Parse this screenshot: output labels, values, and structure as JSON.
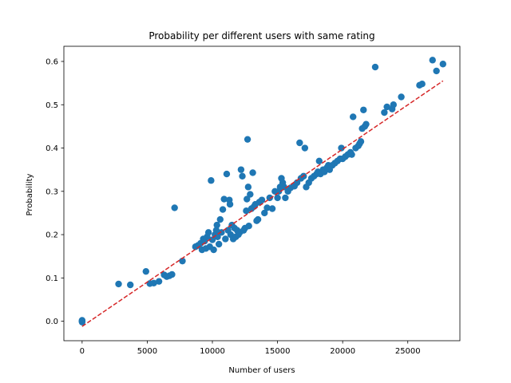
{
  "chart_data": {
    "type": "scatter",
    "title": "Probability per different users with same rating",
    "xlabel": "Number of users",
    "ylabel": "Probability",
    "xlim": [
      -1400,
      29000
    ],
    "ylim": [
      -0.045,
      0.635
    ],
    "xticks": [
      0,
      5000,
      10000,
      15000,
      20000,
      25000
    ],
    "yticks": [
      0.0,
      0.1,
      0.2,
      0.3,
      0.4,
      0.5,
      0.6
    ],
    "xtick_labels": [
      "0",
      "5000",
      "10000",
      "15000",
      "20000",
      "25000"
    ],
    "ytick_labels": [
      "0.0",
      "0.1",
      "0.2",
      "0.3",
      "0.4",
      "0.5",
      "0.6"
    ],
    "grid": false,
    "colors": {
      "points": "#1f77b4",
      "trend": "#d62728"
    },
    "trend_line": {
      "x": [
        0,
        27700
      ],
      "y": [
        -0.012,
        0.555
      ],
      "style": "dashed"
    },
    "points": [
      [
        0,
        0
      ],
      [
        0,
        0
      ],
      [
        0,
        0.002
      ],
      [
        0,
        -0.002
      ],
      [
        2800,
        0.086
      ],
      [
        3700,
        0.084
      ],
      [
        4900,
        0.115
      ],
      [
        5200,
        0.087
      ],
      [
        5500,
        0.088
      ],
      [
        5900,
        0.092
      ],
      [
        6300,
        0.107
      ],
      [
        6500,
        0.103
      ],
      [
        6700,
        0.105
      ],
      [
        6900,
        0.108
      ],
      [
        7100,
        0.262
      ],
      [
        7700,
        0.139
      ],
      [
        8700,
        0.172
      ],
      [
        8900,
        0.175
      ],
      [
        9100,
        0.18
      ],
      [
        9200,
        0.165
      ],
      [
        9300,
        0.19
      ],
      [
        9400,
        0.185
      ],
      [
        9500,
        0.168
      ],
      [
        9600,
        0.195
      ],
      [
        9700,
        0.205
      ],
      [
        9800,
        0.172
      ],
      [
        9900,
        0.325
      ],
      [
        10000,
        0.188
      ],
      [
        10100,
        0.165
      ],
      [
        10200,
        0.2
      ],
      [
        10300,
        0.21
      ],
      [
        10350,
        0.222
      ],
      [
        10400,
        0.195
      ],
      [
        10500,
        0.178
      ],
      [
        10600,
        0.235
      ],
      [
        10700,
        0.205
      ],
      [
        10800,
        0.258
      ],
      [
        10900,
        0.282
      ],
      [
        11000,
        0.19
      ],
      [
        11100,
        0.34
      ],
      [
        11200,
        0.21
      ],
      [
        11300,
        0.28
      ],
      [
        11350,
        0.27
      ],
      [
        11400,
        0.2
      ],
      [
        11500,
        0.222
      ],
      [
        11600,
        0.19
      ],
      [
        11700,
        0.215
      ],
      [
        11800,
        0.195
      ],
      [
        11900,
        0.21
      ],
      [
        12000,
        0.2
      ],
      [
        12100,
        0.205
      ],
      [
        12200,
        0.35
      ],
      [
        12300,
        0.335
      ],
      [
        12400,
        0.21
      ],
      [
        12500,
        0.215
      ],
      [
        12600,
        0.255
      ],
      [
        12650,
        0.282
      ],
      [
        12700,
        0.42
      ],
      [
        12750,
        0.31
      ],
      [
        12800,
        0.22
      ],
      [
        12900,
        0.293
      ],
      [
        13000,
        0.26
      ],
      [
        13100,
        0.343
      ],
      [
        13200,
        0.265
      ],
      [
        13300,
        0.27
      ],
      [
        13400,
        0.232
      ],
      [
        13500,
        0.235
      ],
      [
        13600,
        0.275
      ],
      [
        13800,
        0.28
      ],
      [
        14000,
        0.25
      ],
      [
        14200,
        0.262
      ],
      [
        14400,
        0.285
      ],
      [
        14600,
        0.26
      ],
      [
        14800,
        0.3
      ],
      [
        15000,
        0.285
      ],
      [
        15100,
        0.3
      ],
      [
        15200,
        0.31
      ],
      [
        15300,
        0.33
      ],
      [
        15400,
        0.32
      ],
      [
        15500,
        0.31
      ],
      [
        15600,
        0.285
      ],
      [
        15800,
        0.3
      ],
      [
        16000,
        0.308
      ],
      [
        16300,
        0.312
      ],
      [
        16500,
        0.32
      ],
      [
        16700,
        0.412
      ],
      [
        16800,
        0.33
      ],
      [
        17000,
        0.335
      ],
      [
        17100,
        0.4
      ],
      [
        17200,
        0.31
      ],
      [
        17400,
        0.32
      ],
      [
        17600,
        0.33
      ],
      [
        17800,
        0.335
      ],
      [
        18000,
        0.34
      ],
      [
        18100,
        0.345
      ],
      [
        18200,
        0.37
      ],
      [
        18300,
        0.34
      ],
      [
        18500,
        0.35
      ],
      [
        18600,
        0.345
      ],
      [
        18800,
        0.355
      ],
      [
        18900,
        0.36
      ],
      [
        19000,
        0.35
      ],
      [
        19200,
        0.36
      ],
      [
        19400,
        0.365
      ],
      [
        19600,
        0.37
      ],
      [
        19800,
        0.375
      ],
      [
        19900,
        0.4
      ],
      [
        20000,
        0.375
      ],
      [
        20200,
        0.38
      ],
      [
        20400,
        0.385
      ],
      [
        20600,
        0.39
      ],
      [
        20700,
        0.385
      ],
      [
        20800,
        0.472
      ],
      [
        21000,
        0.4
      ],
      [
        21200,
        0.405
      ],
      [
        21300,
        0.41
      ],
      [
        21400,
        0.415
      ],
      [
        21500,
        0.445
      ],
      [
        21600,
        0.488
      ],
      [
        21700,
        0.45
      ],
      [
        21800,
        0.455
      ],
      [
        22500,
        0.587
      ],
      [
        23200,
        0.482
      ],
      [
        23400,
        0.495
      ],
      [
        23800,
        0.49
      ],
      [
        23900,
        0.5
      ],
      [
        24500,
        0.518
      ],
      [
        25900,
        0.545
      ],
      [
        26100,
        0.548
      ],
      [
        26900,
        0.603
      ],
      [
        27200,
        0.578
      ],
      [
        27700,
        0.594
      ]
    ]
  }
}
